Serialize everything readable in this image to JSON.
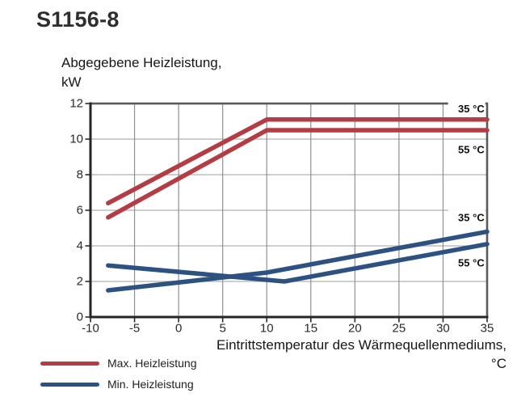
{
  "page": {
    "title": "S1156-8"
  },
  "y_axis_title": {
    "line1": "Abgegebene Heizleistung,",
    "line2": "kW"
  },
  "x_axis_title": {
    "line1": "Eintrittstemperatur des Wärmequellenmediums,",
    "line2": "°C"
  },
  "legend": {
    "items": [
      {
        "label": "Max. Heizleistung",
        "color": "#b43c44"
      },
      {
        "label": "Min. Heizleistung",
        "color": "#2d5180"
      }
    ]
  },
  "chart_data": {
    "type": "line",
    "title": "S1156-8",
    "xlabel": "Eintrittstemperatur des Wärmequellenmediums, °C",
    "ylabel": "Abgegebene Heizleistung, kW",
    "xlim": [
      -10,
      35
    ],
    "ylim": [
      0,
      12
    ],
    "x_ticks": [
      -10,
      -5,
      0,
      5,
      10,
      15,
      20,
      25,
      30,
      35
    ],
    "y_ticks": [
      0,
      2,
      4,
      6,
      8,
      10,
      12
    ],
    "grid": true,
    "legend_position": "bottom-left",
    "series": [
      {
        "name": "Max. Heizleistung 35 °C",
        "color": "#b43c44",
        "points": [
          [
            -8,
            6.4
          ],
          [
            10,
            11.1
          ],
          [
            35,
            11.1
          ]
        ]
      },
      {
        "name": "Max. Heizleistung 55 °C",
        "color": "#b43c44",
        "points": [
          [
            -8,
            5.6
          ],
          [
            10,
            10.5
          ],
          [
            35,
            10.5
          ]
        ]
      },
      {
        "name": "Min. Heizleistung 35 °C",
        "color": "#2d5180",
        "points": [
          [
            -8,
            1.5
          ],
          [
            10,
            2.5
          ],
          [
            35,
            4.8
          ]
        ]
      },
      {
        "name": "Min. Heizleistung 55 °C",
        "color": "#2d5180",
        "points": [
          [
            -8,
            2.9
          ],
          [
            12,
            2.0
          ],
          [
            35,
            4.1
          ]
        ]
      }
    ],
    "annotations": [
      {
        "text": "35 °C",
        "x": 34.7,
        "y": 11.7
      },
      {
        "text": "55 °C",
        "x": 34.7,
        "y": 9.4
      },
      {
        "text": "35 °C",
        "x": 34.7,
        "y": 5.6
      },
      {
        "text": "55 °C",
        "x": 34.7,
        "y": 3.05
      }
    ]
  }
}
